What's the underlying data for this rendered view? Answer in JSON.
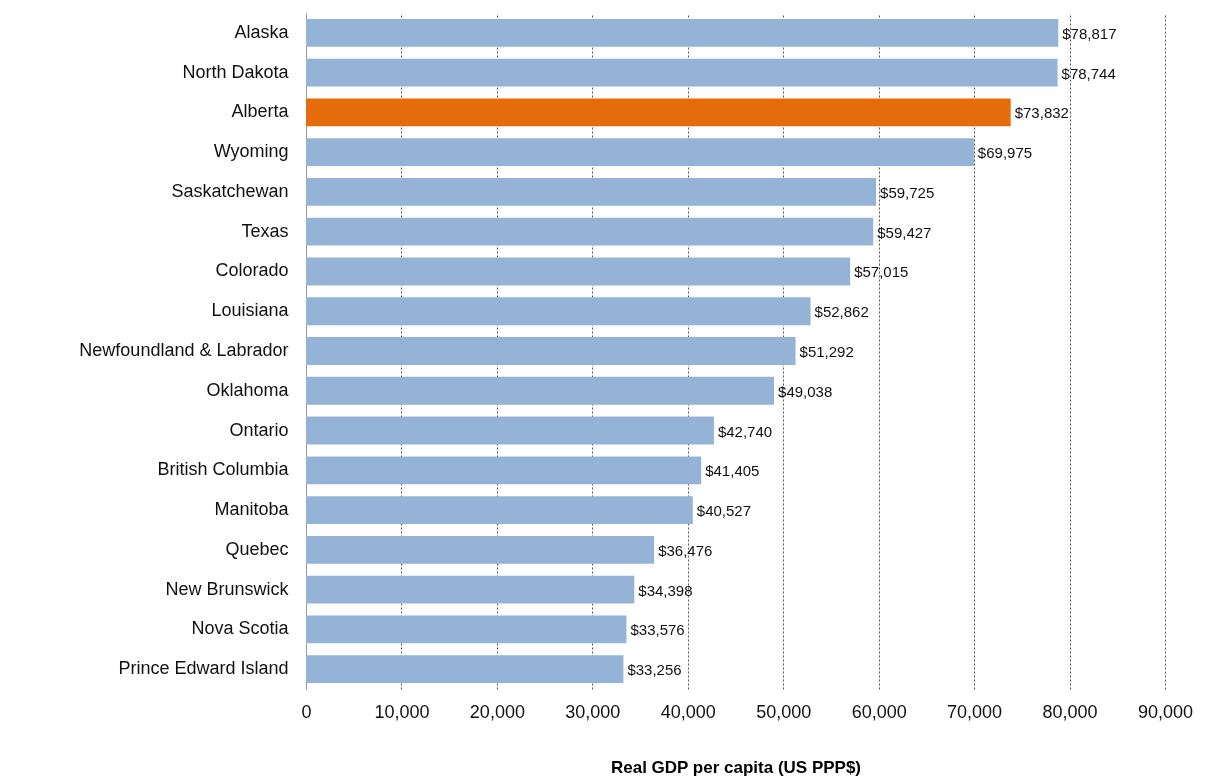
{
  "chart_data": {
    "type": "bar",
    "orientation": "horizontal",
    "xlabel": "Real GDP per capita (US PPP$)",
    "categories": [
      "Alaska",
      "North Dakota",
      "Alberta",
      "Wyoming",
      "Saskatchewan",
      "Texas",
      "Colorado",
      "Louisiana",
      "Newfoundland & Labrador",
      "Oklahoma",
      "Ontario",
      "British Columbia",
      "Manitoba",
      "Quebec",
      "New Brunswick",
      "Nova Scotia",
      "Prince Edward Island"
    ],
    "values": [
      78817,
      78744,
      73832,
      69975,
      59725,
      59427,
      57015,
      52862,
      51292,
      49038,
      42740,
      41405,
      40527,
      36476,
      34398,
      33576,
      33256
    ],
    "value_labels": [
      "$78,817",
      "$78,744",
      "$73,832",
      "$69,975",
      "$59,725",
      "$59,427",
      "$57,015",
      "$52,862",
      "$51,292",
      "$49,038",
      "$42,740",
      "$41,405",
      "$40,527",
      "$36,476",
      "$34,398",
      "$33,576",
      "$33,256"
    ],
    "colors": [
      "#95b3d7",
      "#95b3d7",
      "#e46c0a",
      "#95b3d7",
      "#95b3d7",
      "#95b3d7",
      "#95b3d7",
      "#95b3d7",
      "#95b3d7",
      "#95b3d7",
      "#95b3d7",
      "#95b3d7",
      "#95b3d7",
      "#95b3d7",
      "#95b3d7",
      "#95b3d7",
      "#95b3d7"
    ],
    "xlim": [
      0,
      90000
    ],
    "xticks": [
      {
        "value": 0,
        "label": "0"
      },
      {
        "value": 10000,
        "label": "10,000"
      },
      {
        "value": 20000,
        "label": "20,000"
      },
      {
        "value": 30000,
        "label": "30,000"
      },
      {
        "value": 40000,
        "label": "40,000"
      },
      {
        "value": 50000,
        "label": "50,000"
      },
      {
        "value": 60000,
        "label": "60,000"
      },
      {
        "value": 70000,
        "label": "70,000"
      },
      {
        "value": 80000,
        "label": "80,000"
      },
      {
        "value": 90000,
        "label": "90,000"
      }
    ],
    "grid": "x"
  }
}
